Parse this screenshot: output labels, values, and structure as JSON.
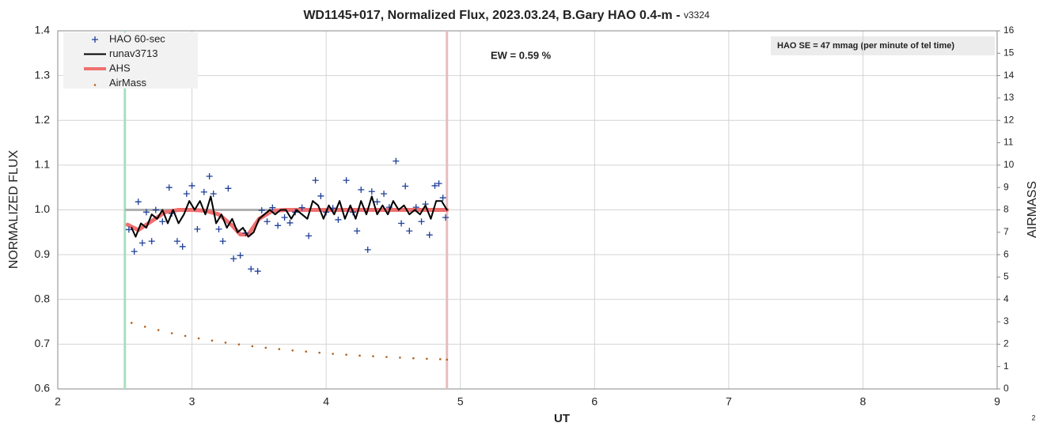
{
  "chart_data": {
    "type": "scatter",
    "title": "WD1145+017, Normalized Flux, 2023.03.24, B.Gary HAO 0.4-m - ",
    "title_suffix": "v3324",
    "xlabel": "UT",
    "ylabel": "NORMALIZED FLUX",
    "y2label": "AIRMASS",
    "annotations": [
      "EW = 0.59 %",
      "HAO SE =  47 mmag (per minute of tel time)"
    ],
    "page_number": "2",
    "legend": "upper left",
    "grid": true,
    "xlim": [
      2,
      9
    ],
    "xticks": [
      2,
      3,
      4,
      5,
      6,
      7,
      8,
      9
    ],
    "ylim": [
      0.6,
      1.4
    ],
    "yticks": [
      0.6,
      0.7,
      0.8,
      0.9,
      {
        "value": 1,
        "label": "1.0"
      },
      1.1,
      1.2,
      1.3,
      1.4
    ],
    "y2lim": [
      0,
      16
    ],
    "y2ticks": [
      0,
      1,
      2,
      3,
      4,
      5,
      6,
      7,
      8,
      9,
      10,
      11,
      12,
      13,
      14,
      15,
      16
    ],
    "vlines": [
      {
        "x": 2.5,
        "color": "#a8e0c0"
      },
      {
        "x": 4.9,
        "color": "#e8bcbc"
      }
    ],
    "hline": {
      "y": 1,
      "x": [
        2.5,
        4.9
      ],
      "color": "#b0b0b0"
    },
    "series": [
      {
        "name": "HAO 60-sec",
        "style": "plus",
        "color": "#1f3f99",
        "x": [
          2.53,
          2.57,
          2.6,
          2.63,
          2.66,
          2.7,
          2.73,
          2.78,
          2.83,
          2.85,
          2.89,
          2.93,
          2.96,
          3.0,
          3.04,
          3.09,
          3.13,
          3.16,
          3.2,
          3.23,
          3.27,
          3.31,
          3.36,
          3.4,
          3.44,
          3.49,
          3.52,
          3.56,
          3.6,
          3.64,
          3.69,
          3.73,
          3.77,
          3.82,
          3.87,
          3.92,
          3.96,
          4.0,
          4.05,
          4.09,
          4.15,
          4.2,
          4.23,
          4.26,
          4.31,
          4.34,
          4.38,
          4.43,
          4.47,
          4.52,
          4.56,
          4.59,
          4.62,
          4.67,
          4.71,
          4.74,
          4.77,
          4.81,
          4.84,
          4.87,
          4.89
        ],
        "values": [
          0.956,
          0.907,
          1.018,
          0.926,
          0.995,
          0.93,
          1.0,
          0.974,
          1.05,
          0.992,
          0.93,
          0.918,
          1.036,
          1.054,
          0.957,
          1.04,
          1.075,
          1.036,
          0.957,
          0.93,
          1.048,
          0.891,
          0.898,
          0.948,
          0.868,
          0.863,
          0.999,
          0.974,
          1.005,
          0.965,
          0.983,
          0.971,
          0.995,
          1.005,
          0.942,
          1.066,
          1.031,
          0.995,
          1.004,
          0.978,
          1.066,
          0.995,
          0.953,
          1.045,
          0.911,
          1.041,
          1.018,
          1.036,
          1.006,
          1.109,
          0.97,
          1.053,
          0.953,
          1.006,
          0.974,
          1.013,
          0.944,
          1.054,
          1.059,
          1.027,
          0.983
        ]
      },
      {
        "name": "runav3713",
        "style": "line",
        "color": "#000000",
        "x": [
          2.55,
          2.58,
          2.62,
          2.66,
          2.7,
          2.74,
          2.78,
          2.82,
          2.86,
          2.9,
          2.94,
          2.98,
          3.02,
          3.06,
          3.1,
          3.14,
          3.18,
          3.22,
          3.26,
          3.3,
          3.34,
          3.38,
          3.42,
          3.46,
          3.5,
          3.54,
          3.58,
          3.62,
          3.66,
          3.7,
          3.74,
          3.78,
          3.82,
          3.86,
          3.9,
          3.94,
          3.98,
          4.02,
          4.06,
          4.1,
          4.14,
          4.18,
          4.22,
          4.26,
          4.3,
          4.34,
          4.38,
          4.42,
          4.46,
          4.5,
          4.54,
          4.58,
          4.62,
          4.66,
          4.7,
          4.74,
          4.78,
          4.82,
          4.86,
          4.9
        ],
        "values": [
          0.96,
          0.94,
          0.97,
          0.96,
          0.99,
          0.98,
          1.0,
          0.97,
          1.0,
          0.97,
          0.99,
          1.02,
          1.0,
          1.02,
          0.99,
          1.03,
          0.97,
          0.99,
          0.96,
          0.98,
          0.95,
          0.96,
          0.94,
          0.95,
          0.98,
          0.99,
          1.0,
          0.99,
          1.0,
          1.0,
          0.98,
          1.0,
          0.99,
          0.98,
          1.02,
          1.01,
          0.98,
          1.01,
          0.99,
          1.02,
          0.98,
          1.01,
          0.98,
          1.02,
          0.99,
          1.03,
          0.99,
          1.01,
          0.99,
          1.02,
          1.0,
          1.01,
          0.99,
          1.0,
          0.99,
          1.01,
          0.98,
          1.02,
          1.02,
          1.0
        ]
      },
      {
        "name": "AHS",
        "style": "thick",
        "color": "#f07070",
        "x": [
          2.52,
          2.6,
          2.7,
          2.8,
          2.9,
          3.0,
          3.1,
          3.2,
          3.3,
          3.36,
          3.42,
          3.5,
          3.6,
          3.7,
          3.9,
          4.1,
          4.3,
          4.5,
          4.7,
          4.9
        ],
        "values": [
          0.967,
          0.955,
          0.975,
          0.995,
          1.0,
          1.0,
          0.998,
          0.99,
          0.965,
          0.945,
          0.945,
          0.98,
          0.998,
          1.0,
          1.0,
          1.0,
          1.0,
          1.0,
          1.0,
          1.0
        ]
      },
      {
        "name": "AirMass",
        "style": "dot",
        "color": "#b0601f",
        "axis": "y2",
        "x": [
          2.55,
          2.65,
          2.75,
          2.85,
          2.95,
          3.05,
          3.15,
          3.25,
          3.35,
          3.45,
          3.55,
          3.65,
          3.75,
          3.85,
          3.95,
          4.05,
          4.15,
          4.25,
          4.35,
          4.45,
          4.55,
          4.65,
          4.75,
          4.85,
          4.9
        ],
        "values": [
          2.95,
          2.78,
          2.63,
          2.49,
          2.37,
          2.26,
          2.16,
          2.07,
          1.99,
          1.91,
          1.84,
          1.78,
          1.72,
          1.67,
          1.62,
          1.57,
          1.53,
          1.49,
          1.46,
          1.43,
          1.4,
          1.37,
          1.35,
          1.33,
          1.31
        ]
      }
    ]
  }
}
